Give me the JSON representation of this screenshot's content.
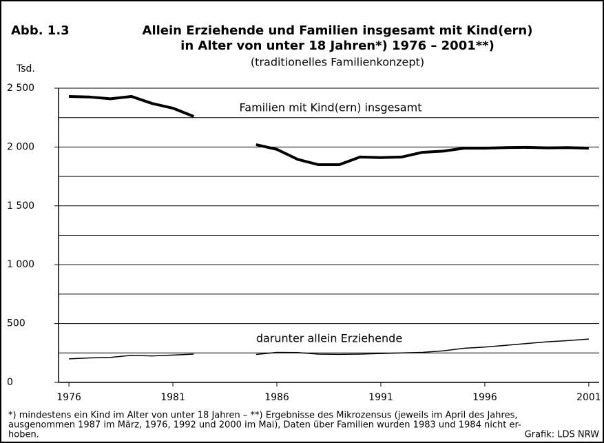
{
  "chart_data": {
    "type": "line",
    "figure_label": "Abb. 1.3",
    "title": [
      "Allein Erziehende und Familien insgesamt mit Kind(ern)",
      "in Alter von unter 18 Jahren*) 1976 – 2001**)"
    ],
    "subtitle": "(traditionelles Familienkonzept)",
    "y_label": "Tsd.",
    "x": [
      1976,
      1977,
      1978,
      1979,
      1980,
      1981,
      1982,
      1983,
      1984,
      1985,
      1986,
      1987,
      1988,
      1989,
      1990,
      1991,
      1992,
      1993,
      1994,
      1995,
      1996,
      1997,
      1998,
      1999,
      2000,
      2001
    ],
    "series": [
      {
        "name": "Familien mit Kind(ern) insgesamt",
        "color": "#000000",
        "width": 4,
        "values": [
          2430,
          2425,
          2410,
          2430,
          2370,
          2330,
          2260,
          null,
          null,
          2020,
          1980,
          1895,
          1850,
          1850,
          1915,
          1910,
          1915,
          1955,
          1965,
          1990,
          1990,
          1995,
          1997,
          1993,
          1995,
          1990
        ]
      },
      {
        "name": "darunter allein Erziehende",
        "color": "#000000",
        "width": 1.5,
        "values": [
          200,
          208,
          212,
          230,
          225,
          232,
          240,
          null,
          null,
          237,
          255,
          253,
          240,
          238,
          240,
          245,
          250,
          255,
          268,
          290,
          300,
          315,
          330,
          345,
          355,
          368
        ]
      }
    ],
    "xlim": [
      1975.5,
      2001.5
    ],
    "xticks": [
      1976,
      1981,
      1986,
      1991,
      1996,
      2001
    ],
    "ylim": [
      0,
      2500
    ],
    "yticks": [
      0,
      500,
      {
        "value": 1000,
        "label": "1 000"
      },
      {
        "value": 1500,
        "label": "1 500"
      },
      {
        "value": 2000,
        "label": "2 000"
      },
      {
        "value": 2500,
        "label": "2 500"
      }
    ],
    "yminor_grid": [
      250,
      750,
      1250,
      1750,
      2250
    ],
    "grid": true,
    "footnote": [
      "*)  mindestens ein Kind im Alter von unter 18 Jahren – **) Ergebnisse des Mikrozensus (jeweils im April des Jahres,",
      "ausgenommen 1987 im März, 1976, 1992 und 2000 im Mai), Daten über Familien wurden 1983 und 1984 nicht er-",
      "hoben."
    ],
    "source": "Grafik: LDS NRW"
  }
}
